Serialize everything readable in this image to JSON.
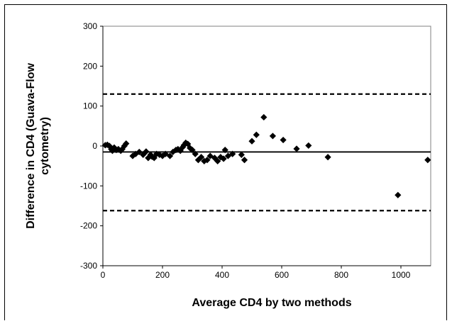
{
  "chart_data": {
    "type": "scatter",
    "title": "",
    "xlabel": "Average CD4 by two methods",
    "ylabel_lines": [
      "Difference in CD4 (Guava-Flow",
      "cytometry)"
    ],
    "xlim": [
      0,
      1100
    ],
    "ylim": [
      -300,
      300
    ],
    "x_ticks": [
      0,
      200,
      400,
      600,
      800,
      1000
    ],
    "y_ticks": [
      300,
      200,
      100,
      0,
      -100,
      -200,
      -300
    ],
    "grid": false,
    "legend": "none",
    "marker": "diamond",
    "colors": {
      "points": "#000000",
      "lines": "#000000"
    },
    "reference_lines": [
      {
        "kind": "mean",
        "y": -15,
        "style": "solid"
      },
      {
        "kind": "upper-limit",
        "y": 130,
        "style": "dashed"
      },
      {
        "kind": "lower-limit",
        "y": -162,
        "style": "dashed"
      }
    ],
    "points": [
      [
        8,
        2
      ],
      [
        15,
        3
      ],
      [
        22,
        0
      ],
      [
        28,
        -8
      ],
      [
        32,
        -12
      ],
      [
        38,
        -4
      ],
      [
        45,
        -10
      ],
      [
        52,
        -8
      ],
      [
        60,
        -12
      ],
      [
        65,
        -8
      ],
      [
        72,
        0
      ],
      [
        78,
        6
      ],
      [
        100,
        -25
      ],
      [
        110,
        -20
      ],
      [
        122,
        -15
      ],
      [
        135,
        -22
      ],
      [
        145,
        -14
      ],
      [
        152,
        -30
      ],
      [
        160,
        -22
      ],
      [
        165,
        -27
      ],
      [
        172,
        -30
      ],
      [
        180,
        -20
      ],
      [
        190,
        -22
      ],
      [
        200,
        -25
      ],
      [
        210,
        -20
      ],
      [
        225,
        -25
      ],
      [
        235,
        -15
      ],
      [
        245,
        -10
      ],
      [
        252,
        -8
      ],
      [
        260,
        -12
      ],
      [
        268,
        -3
      ],
      [
        272,
        2
      ],
      [
        278,
        8
      ],
      [
        285,
        5
      ],
      [
        292,
        -5
      ],
      [
        300,
        -10
      ],
      [
        310,
        -20
      ],
      [
        320,
        -35
      ],
      [
        330,
        -28
      ],
      [
        340,
        -38
      ],
      [
        350,
        -35
      ],
      [
        360,
        -25
      ],
      [
        375,
        -30
      ],
      [
        385,
        -38
      ],
      [
        395,
        -28
      ],
      [
        405,
        -32
      ],
      [
        410,
        -10
      ],
      [
        420,
        -25
      ],
      [
        435,
        -20
      ],
      [
        465,
        -22
      ],
      [
        475,
        -35
      ],
      [
        500,
        12
      ],
      [
        515,
        28
      ],
      [
        540,
        72
      ],
      [
        570,
        25
      ],
      [
        605,
        15
      ],
      [
        650,
        -7
      ],
      [
        690,
        1
      ],
      [
        755,
        -28
      ],
      [
        990,
        -123
      ],
      [
        1090,
        -35
      ]
    ]
  }
}
